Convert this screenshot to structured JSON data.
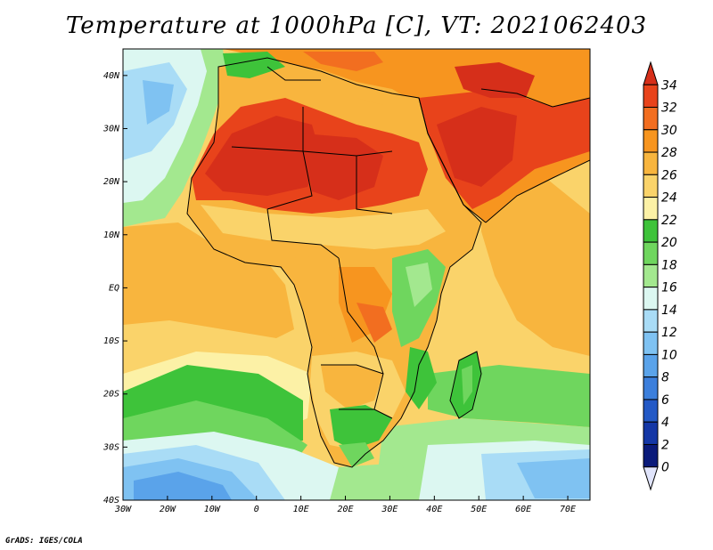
{
  "title": "Temperature at 1000hPa [C], VT: 2021062403",
  "credit": "GrADS: IGES/COLA",
  "map": {
    "lat_range": [
      -40,
      45
    ],
    "lon_range": [
      -30,
      75
    ],
    "lat_ticks": [
      "40N",
      "30N",
      "20N",
      "10N",
      "EQ",
      "10S",
      "20S",
      "30S",
      "40S"
    ],
    "lon_ticks": [
      "30W",
      "20W",
      "10W",
      "0",
      "10E",
      "20E",
      "30E",
      "40E",
      "50E",
      "60E",
      "70E"
    ]
  },
  "colorbar": {
    "labels": [
      "34",
      "32",
      "30",
      "28",
      "26",
      "24",
      "22",
      "20",
      "18",
      "16",
      "14",
      "12",
      "10",
      "8",
      "6",
      "4",
      "2",
      "0"
    ],
    "colors_top_to_bottom": [
      "#d62f1a",
      "#e8431b",
      "#f26e20",
      "#f7951f",
      "#f8b53e",
      "#fad36a",
      "#fcf1a6",
      "#3ec33a",
      "#6fd65e",
      "#a3e88f",
      "#dcf7f1",
      "#a9dcf6",
      "#7fc2f2",
      "#5aa3ea",
      "#3c7fdc",
      "#2359c6",
      "#1437a6",
      "#0a1a7a",
      "#e0e4fb"
    ]
  }
}
